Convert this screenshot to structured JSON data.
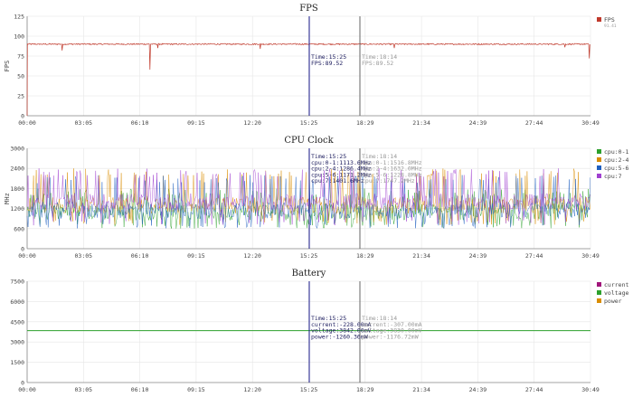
{
  "charts": [
    {
      "id": "fps",
      "title": "FPS",
      "ylabel": "FPS",
      "yticks": [
        "0",
        "25",
        "50",
        "75",
        "100",
        "125"
      ],
      "ylim": [
        0,
        125
      ],
      "legend": [
        {
          "name": "FPS",
          "value": "91.41",
          "color": "#c0392b"
        }
      ],
      "cursor_primary": {
        "lines": [
          "Time:15:25",
          "FPS:89.52"
        ]
      },
      "cursor_secondary": {
        "lines": [
          "Time:18:14",
          "FPS:89.52"
        ]
      }
    },
    {
      "id": "cpu",
      "title": "CPU Clock",
      "ylabel": "MHz",
      "yticks": [
        "0",
        "600",
        "1200",
        "1800",
        "2400",
        "3000"
      ],
      "ylim": [
        0,
        3000
      ],
      "legend": [
        {
          "name": "cpu:0-1",
          "color": "#2ca02c"
        },
        {
          "name": "cpu:2-4",
          "color": "#d98c00"
        },
        {
          "name": "cpu:5-6",
          "color": "#1f5fbf"
        },
        {
          "name": "cpu:7",
          "color": "#a040d0"
        }
      ],
      "cursor_primary": {
        "lines": [
          "Time:15:25",
          "cpu:0-1:1113.6MHz",
          "cpu:2-4:1286.4MHz",
          "cpu:5-6:1171.2MHz",
          "cpu:7:1401.6MHz"
        ]
      },
      "cursor_secondary": {
        "lines": [
          "Time:18:14",
          "cpu:0-1:1516.8MHz",
          "cpu:2-4:1632.0MHz",
          "cpu:5-6:1228.8MHz",
          "cpu:7:1747.2MHz"
        ]
      }
    },
    {
      "id": "battery",
      "title": "Battery",
      "ylabel": "",
      "yticks": [
        "0",
        "1500",
        "3000",
        "4500",
        "6000",
        "7500"
      ],
      "ylim": [
        0,
        7500
      ],
      "legend": [
        {
          "name": "current",
          "color": "#a0157a"
        },
        {
          "name": "voltage",
          "color": "#2ca02c"
        },
        {
          "name": "power",
          "color": "#d98c00"
        }
      ],
      "cursor_primary": {
        "lines": [
          "Time:15:25",
          "current:-228.00mA",
          "voltage:3842.00mV",
          "power:-1260.36mW"
        ]
      },
      "cursor_secondary": {
        "lines": [
          "Time:18:14",
          "current:-307.00mA",
          "voltage:3830.00mV",
          "power:-1176.72mW"
        ]
      }
    }
  ],
  "xticks": [
    "00:00",
    "03:05",
    "06:10",
    "09:15",
    "12:20",
    "15:25",
    "18:29",
    "21:34",
    "24:39",
    "27:44",
    "30:49"
  ],
  "chart_data": [
    {
      "type": "line",
      "title": "FPS",
      "ylabel": "FPS",
      "ylim": [
        0,
        125
      ],
      "x_range_seconds": [
        0,
        1849
      ],
      "series": [
        {
          "name": "FPS",
          "baseline": 90,
          "dips": [
            [
              115,
              82
            ],
            [
              403,
              58
            ],
            [
              428,
              85
            ],
            [
              765,
              84
            ],
            [
              1205,
              85
            ],
            [
              1765,
              86
            ],
            [
              1845,
              72
            ]
          ]
        }
      ],
      "cursor_primary": {
        "x": "15:25",
        "FPS": 89.52
      },
      "cursor_secondary": {
        "x": "18:14",
        "FPS": 89.52
      }
    },
    {
      "type": "line",
      "title": "CPU Clock",
      "ylabel": "MHz",
      "ylim": [
        0,
        3000
      ],
      "series": [
        {
          "name": "cpu:0-1",
          "range": [
            600,
            1800
          ],
          "typical": 1100
        },
        {
          "name": "cpu:2-4",
          "range": [
            700,
            2400
          ],
          "typical": 1300
        },
        {
          "name": "cpu:5-6",
          "range": [
            600,
            2200
          ],
          "typical": 1150
        },
        {
          "name": "cpu:7",
          "range": [
            700,
            2400
          ],
          "typical": 1400
        }
      ]
    },
    {
      "type": "line",
      "title": "Battery",
      "ylim": [
        0,
        7500
      ],
      "series": [
        {
          "name": "current",
          "value": -228
        },
        {
          "name": "voltage",
          "value": 3842
        },
        {
          "name": "power",
          "value": -1260.36
        }
      ]
    }
  ]
}
